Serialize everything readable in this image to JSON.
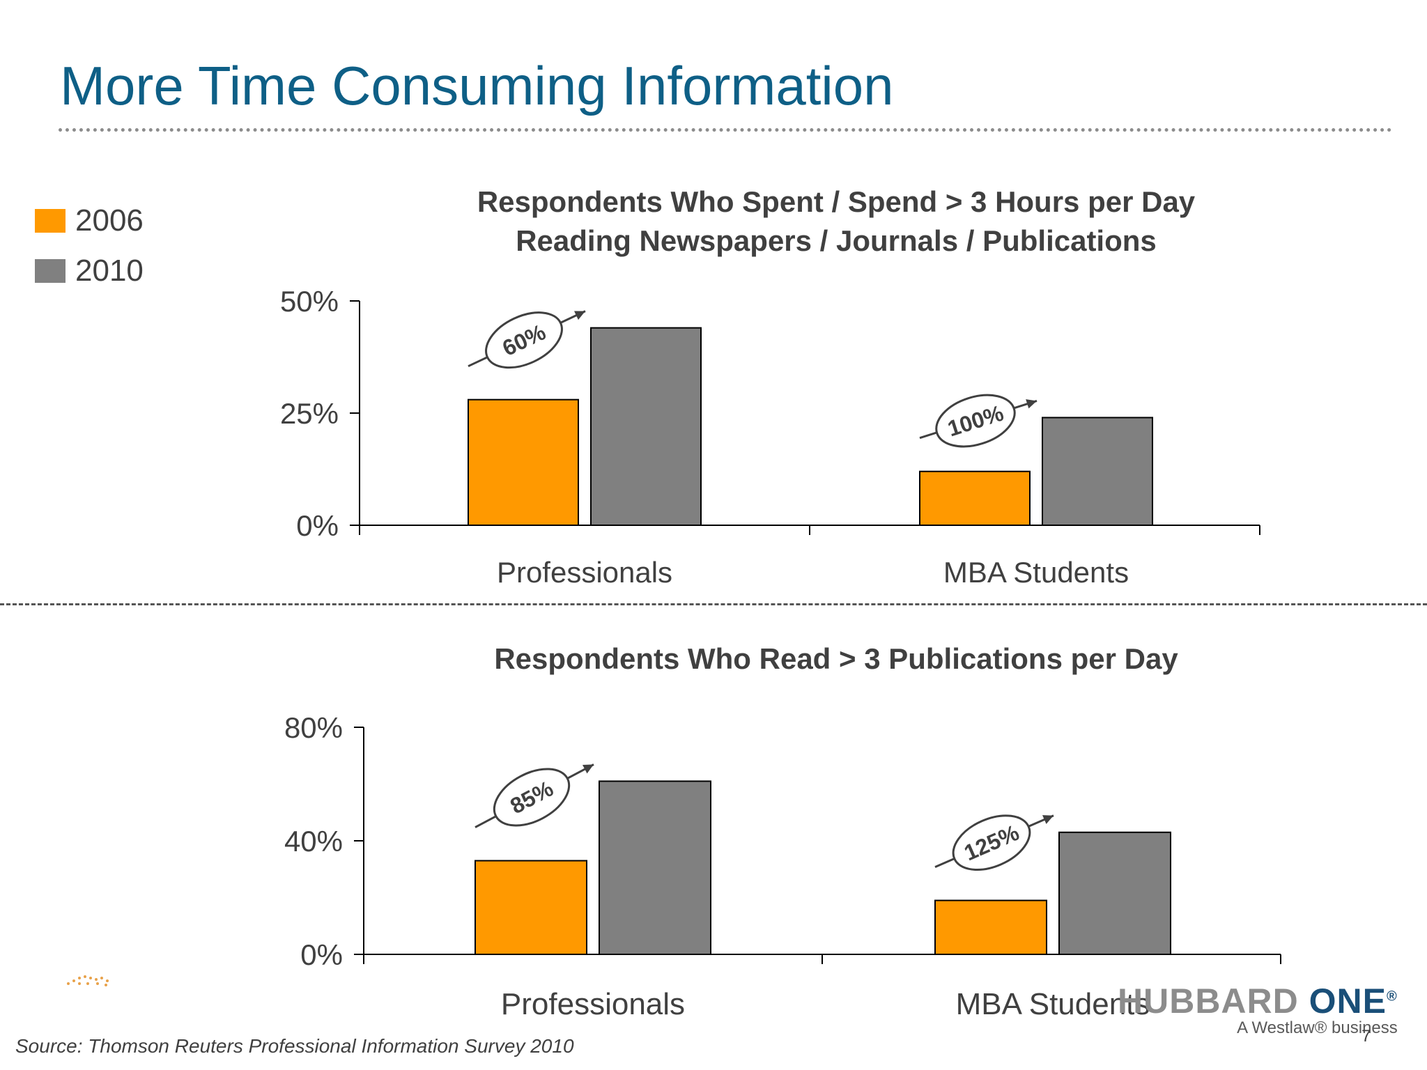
{
  "slide": {
    "title": "More Time Consuming Information",
    "source": "Source: Thomson Reuters Professional Information Survey 2010",
    "page_number": "7",
    "brand": {
      "name_gray": "HUBBARD ",
      "name_accent": "ONE",
      "reg_mark": "®",
      "tagline": "A Westlaw® business"
    }
  },
  "legend": [
    {
      "label": "2006",
      "color": "#ff9900"
    },
    {
      "label": "2010",
      "color": "#808080"
    }
  ],
  "colors": {
    "s2006": "#ff9900",
    "s2010": "#808080",
    "axis": "#000000",
    "text": "#404040"
  },
  "chart_data": [
    {
      "type": "bar",
      "title": "Respondents Who Spent / Spend > 3 Hours per Day\nReading Newspapers / Journals / Publications",
      "categories": [
        "Professionals",
        "MBA Students"
      ],
      "series": [
        {
          "name": "2006",
          "values": [
            28,
            12
          ]
        },
        {
          "name": "2010",
          "values": [
            44,
            24
          ]
        }
      ],
      "ylim": [
        0,
        50
      ],
      "yticks": [
        0,
        25,
        50
      ],
      "ytick_labels": [
        "0%",
        "25%",
        "50%"
      ],
      "annotations": [
        "60%",
        "100%"
      ],
      "legend": "top-left",
      "grid": false
    },
    {
      "type": "bar",
      "title": "Respondents Who Read > 3 Publications per Day",
      "categories": [
        "Professionals",
        "MBA Students"
      ],
      "series": [
        {
          "name": "2006",
          "values": [
            33,
            19
          ]
        },
        {
          "name": "2010",
          "values": [
            61,
            43
          ]
        }
      ],
      "ylim": [
        0,
        80
      ],
      "yticks": [
        0,
        40,
        80
      ],
      "ytick_labels": [
        "0%",
        "40%",
        "80%"
      ],
      "annotations": [
        "85%",
        "125%"
      ],
      "legend": "top-left",
      "grid": false
    }
  ]
}
